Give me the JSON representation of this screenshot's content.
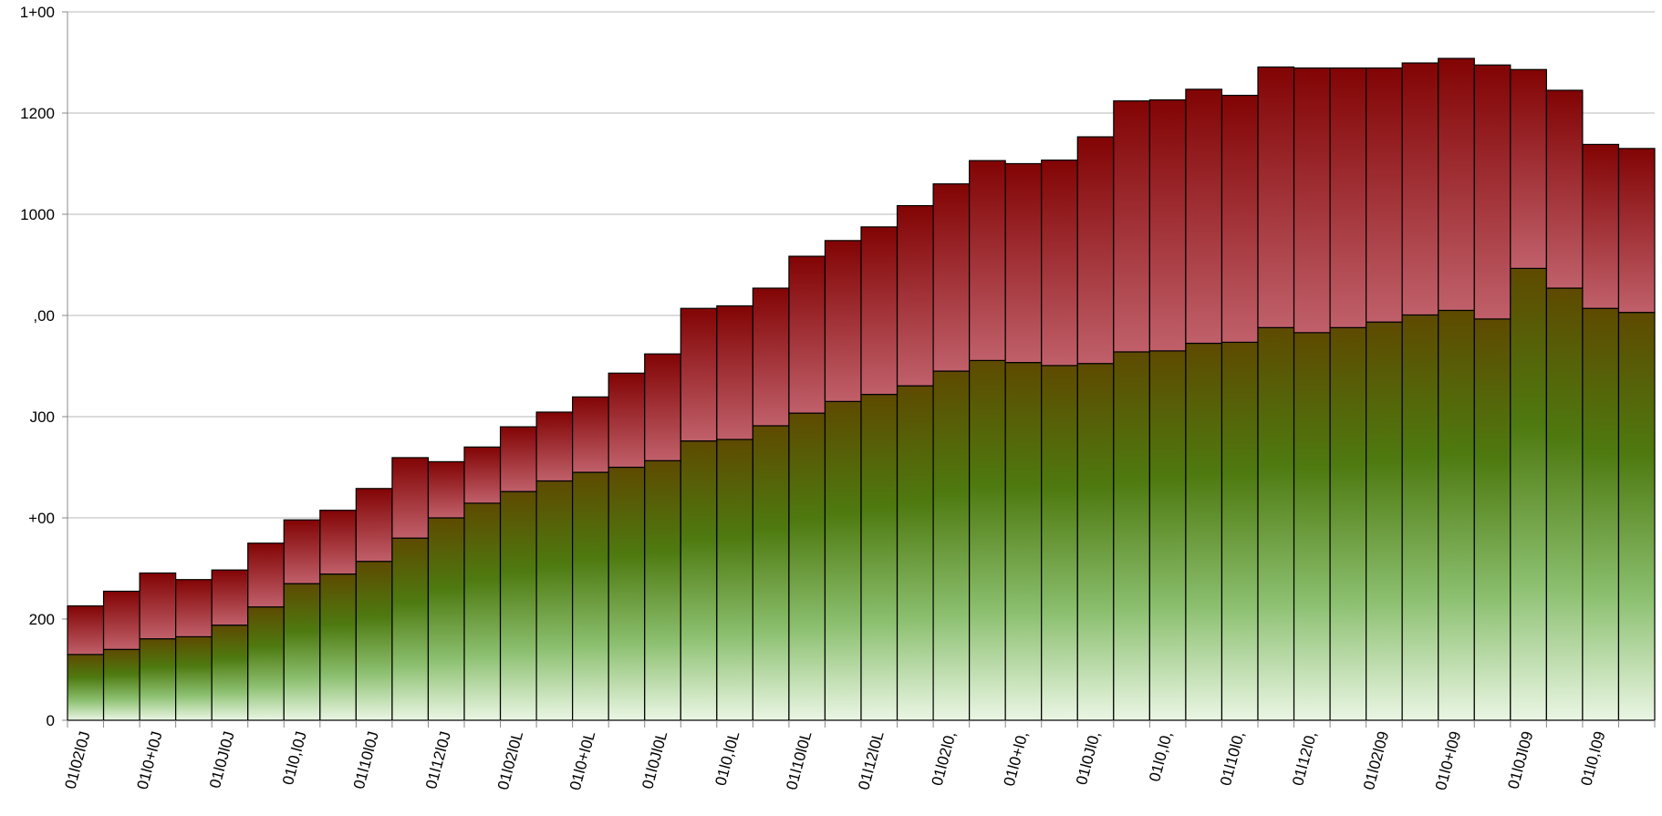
{
  "chart_data": {
    "type": "stacked-bar",
    "categories": [
      "01ǀ02ǀ0J",
      null,
      "01ǀ0+ǀ0J",
      null,
      "01ǀ0Jǀ0J",
      null,
      "01ǀ0,ǀ0J",
      null,
      "01ǀ10ǀ0J",
      null,
      "01ǀ12ǀ0J",
      null,
      "01ǀ02ǀ0L",
      null,
      "01ǀ0+ǀ0L",
      null,
      "01ǀ0Jǀ0L",
      null,
      "01ǀ0,ǀ0L",
      null,
      "01ǀ10ǀ0L",
      null,
      "01ǀ12ǀ0L",
      null,
      "01ǀ02ǀ0,",
      null,
      "01ǀ0+ǀ0,",
      null,
      "01ǀ0Jǀ0,",
      null,
      "01ǀ0,ǀ0,",
      null,
      "01ǀ10ǀ0,",
      null,
      "01ǀ12ǀ0,",
      null,
      "01ǀ02ǀ09",
      null,
      "01ǀ0+ǀ09",
      null,
      "01ǀ0Jǀ09",
      null,
      "01ǀ0,ǀ09",
      null
    ],
    "series": [
      {
        "color": "#4a7a10",
        "values": [
          130,
          140,
          161,
          165,
          188,
          224,
          270,
          289,
          314,
          360,
          400,
          429,
          452,
          473,
          490,
          500,
          513,
          552,
          555,
          582,
          607,
          630,
          644,
          661,
          690,
          711,
          707,
          701,
          705,
          728,
          730,
          745,
          747,
          776,
          766,
          776,
          787,
          801,
          810,
          793,
          893,
          854,
          814,
          806
        ]
      },
      {
        "color": "#8a0a0a",
        "values": [
          96,
          115,
          130,
          113,
          109,
          126,
          126,
          126,
          144,
          159,
          111,
          111,
          128,
          136,
          149,
          186,
          211,
          262,
          264,
          272,
          310,
          318,
          331,
          356,
          370,
          395,
          393,
          406,
          448,
          496,
          496,
          502,
          488,
          515,
          523,
          513,
          502,
          498,
          498,
          502,
          393,
          391,
          324,
          324
        ]
      }
    ],
    "ylim": [
      0,
      1400
    ],
    "yticks": [
      0,
      200,
      {
        "value": 400,
        "label": "+00"
      },
      {
        "value": 600,
        "label": "J00"
      },
      {
        "value": 800,
        "label": ",00"
      },
      1000,
      1200,
      {
        "value": 1400,
        "label": "1+00"
      }
    ],
    "grid": true
  }
}
